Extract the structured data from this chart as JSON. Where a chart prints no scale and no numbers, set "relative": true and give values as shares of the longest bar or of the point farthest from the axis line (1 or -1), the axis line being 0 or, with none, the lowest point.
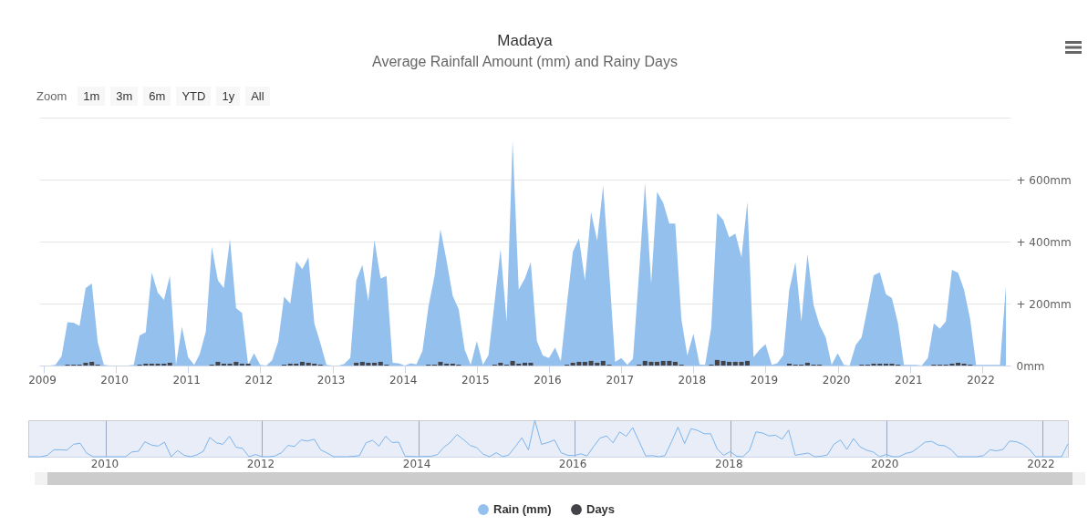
{
  "chart_data": [
    {
      "type": "area",
      "title": "Madaya",
      "subtitle": "Average Rainfall Amount (mm) and Rainy Days",
      "annotations": [
        "Zoom",
        "1m",
        "3m",
        "6m",
        "YTD",
        "1y",
        "All"
      ],
      "x": [
        "2009-01",
        "2009-02",
        "2009-03",
        "2009-04",
        "2009-05",
        "2009-06",
        "2009-07",
        "2009-08",
        "2009-09",
        "2009-10",
        "2009-11",
        "2009-12",
        "2010-01",
        "2010-02",
        "2010-03",
        "2010-04",
        "2010-05",
        "2010-06",
        "2010-07",
        "2010-08",
        "2010-09",
        "2010-10",
        "2010-11",
        "2010-12",
        "2011-01",
        "2011-02",
        "2011-03",
        "2011-04",
        "2011-05",
        "2011-06",
        "2011-07",
        "2011-08",
        "2011-09",
        "2011-10",
        "2011-11",
        "2011-12",
        "2012-01",
        "2012-02",
        "2012-03",
        "2012-04",
        "2012-05",
        "2012-06",
        "2012-07",
        "2012-08",
        "2012-09",
        "2012-10",
        "2012-11",
        "2012-12",
        "2013-01",
        "2013-02",
        "2013-03",
        "2013-04",
        "2013-05",
        "2013-06",
        "2013-07",
        "2013-08",
        "2013-09",
        "2013-10",
        "2013-11",
        "2013-12",
        "2014-01",
        "2014-02",
        "2014-03",
        "2014-04",
        "2014-05",
        "2014-06",
        "2014-07",
        "2014-08",
        "2014-09",
        "2014-10",
        "2014-11",
        "2014-12",
        "2015-01",
        "2015-02",
        "2015-03",
        "2015-04",
        "2015-05",
        "2015-06",
        "2015-07",
        "2015-08",
        "2015-09",
        "2015-10",
        "2015-11",
        "2015-12",
        "2016-01",
        "2016-02",
        "2016-03",
        "2016-04",
        "2016-05",
        "2016-06",
        "2016-07",
        "2016-08",
        "2016-09",
        "2016-10",
        "2016-11",
        "2016-12",
        "2017-01",
        "2017-02",
        "2017-03",
        "2017-04",
        "2017-05",
        "2017-06",
        "2017-07",
        "2017-08",
        "2017-09",
        "2017-10",
        "2017-11",
        "2017-12",
        "2018-01",
        "2018-02",
        "2018-03",
        "2018-04",
        "2018-05",
        "2018-06",
        "2018-07",
        "2018-08",
        "2018-09",
        "2018-10",
        "2018-11",
        "2018-12",
        "2019-01",
        "2019-02",
        "2019-03",
        "2019-04",
        "2019-05",
        "2019-06",
        "2019-07",
        "2019-08",
        "2019-09",
        "2019-10",
        "2019-11",
        "2019-12",
        "2020-01",
        "2020-02",
        "2020-03",
        "2020-04",
        "2020-05",
        "2020-06",
        "2020-07",
        "2020-08",
        "2020-09",
        "2020-10",
        "2020-11",
        "2020-12",
        "2021-01",
        "2021-02",
        "2021-03",
        "2021-04",
        "2021-05",
        "2021-06",
        "2021-07",
        "2021-08",
        "2021-09",
        "2021-10",
        "2021-11",
        "2021-12",
        "2022-01",
        "2022-02",
        "2022-03",
        "2022-04",
        "2022-05"
      ],
      "series": [
        {
          "name": "Rain (mm)",
          "color": "#94c0ee",
          "values": [
            0,
            0,
            2,
            30,
            140,
            138,
            128,
            250,
            265,
            75,
            2,
            0,
            0,
            0,
            0,
            2,
            97,
            107,
            300,
            235,
            212,
            290,
            2,
            125,
            27,
            2,
            37,
            110,
            383,
            275,
            250,
            408,
            185,
            170,
            2,
            40,
            2,
            0,
            17,
            77,
            222,
            200,
            337,
            311,
            349,
            136,
            71,
            2,
            0,
            0,
            5,
            25,
            275,
            325,
            207,
            405,
            281,
            289,
            9,
            7,
            0,
            7,
            4,
            47,
            190,
            289,
            440,
            339,
            225,
            182,
            51,
            2,
            79,
            2,
            34,
            205,
            375,
            141,
            725,
            245,
            281,
            334,
            79,
            32,
            24,
            58,
            14,
            200,
            368,
            410,
            274,
            495,
            403,
            581,
            300,
            12,
            24,
            2,
            22,
            300,
            590,
            264,
            560,
            525,
            458,
            458,
            150,
            32,
            103,
            4,
            2,
            121,
            492,
            469,
            413,
            426,
            350,
            529,
            27,
            51,
            69,
            2,
            7,
            34,
            245,
            334,
            143,
            360,
            195,
            131,
            91,
            2,
            40,
            2,
            0,
            66,
            91,
            190,
            291,
            301,
            230,
            218,
            136,
            2,
            2,
            2,
            0,
            24,
            136,
            119,
            143,
            309,
            299,
            245,
            150,
            2,
            2,
            2,
            2,
            2,
            257
          ]
        },
        {
          "name": "Days",
          "type": "bar",
          "color": "#434348",
          "values": [
            null,
            null,
            null,
            null,
            3,
            3,
            3,
            9,
            12,
            3,
            null,
            null,
            null,
            null,
            null,
            null,
            3,
            6,
            6,
            6,
            6,
            9,
            null,
            null,
            null,
            null,
            null,
            null,
            3,
            12,
            6,
            6,
            12,
            6,
            6,
            null,
            null,
            null,
            null,
            null,
            3,
            6,
            6,
            12,
            9,
            6,
            3,
            null,
            null,
            null,
            null,
            null,
            9,
            12,
            9,
            9,
            12,
            3,
            null,
            null,
            null,
            null,
            null,
            null,
            3,
            3,
            12,
            6,
            6,
            3,
            null,
            null,
            null,
            null,
            null,
            3,
            9,
            3,
            15,
            6,
            9,
            9,
            null,
            null,
            null,
            null,
            null,
            3,
            9,
            12,
            12,
            15,
            9,
            15,
            3,
            null,
            null,
            null,
            null,
            3,
            15,
            12,
            12,
            15,
            15,
            12,
            3,
            null,
            null,
            null,
            null,
            3,
            18,
            15,
            12,
            12,
            12,
            15,
            null,
            null,
            null,
            null,
            null,
            null,
            6,
            3,
            3,
            9,
            3,
            3,
            null,
            null,
            null,
            null,
            null,
            null,
            3,
            3,
            6,
            6,
            6,
            6,
            3,
            null,
            null,
            null,
            null,
            null,
            3,
            3,
            3,
            6,
            9,
            6,
            3,
            null,
            null,
            null,
            null,
            null,
            null
          ]
        }
      ],
      "xlim": [
        "2009-01",
        "2022-05"
      ],
      "xticks": [
        "2009",
        "2010",
        "2011",
        "2012",
        "2013",
        "2014",
        "2015",
        "2016",
        "2017",
        "2018",
        "2019",
        "2020",
        "2021",
        "2022"
      ],
      "ylim": [
        0,
        800
      ],
      "yticks": [
        {
          "value": 0,
          "label": "0mm"
        },
        {
          "value": 200,
          "label": "+ 200mm"
        },
        {
          "value": 400,
          "label": "+ 400mm"
        },
        {
          "value": 600,
          "label": "+ 600mm"
        },
        {
          "value": 800,
          "label": null
        }
      ],
      "grid": "y",
      "legend": "bottom",
      "marker": "none"
    },
    {
      "type": "line",
      "relative": true,
      "x": [
        "2009-01",
        "2009-02",
        "2009-03",
        "2009-04",
        "2009-05",
        "2009-06",
        "2009-07",
        "2009-08",
        "2009-09",
        "2009-10",
        "2009-11",
        "2009-12",
        "2010-01",
        "2010-02",
        "2010-03",
        "2010-04",
        "2010-05",
        "2010-06",
        "2010-07",
        "2010-08",
        "2010-09",
        "2010-10",
        "2010-11",
        "2010-12",
        "2011-01",
        "2011-02",
        "2011-03",
        "2011-04",
        "2011-05",
        "2011-06",
        "2011-07",
        "2011-08",
        "2011-09",
        "2011-10",
        "2011-11",
        "2011-12",
        "2012-01",
        "2012-02",
        "2012-03",
        "2012-04",
        "2012-05",
        "2012-06",
        "2012-07",
        "2012-08",
        "2012-09",
        "2012-10",
        "2012-11",
        "2012-12",
        "2013-01",
        "2013-02",
        "2013-03",
        "2013-04",
        "2013-05",
        "2013-06",
        "2013-07",
        "2013-08",
        "2013-09",
        "2013-10",
        "2013-11",
        "2013-12",
        "2014-01",
        "2014-02",
        "2014-03",
        "2014-04",
        "2014-05",
        "2014-06",
        "2014-07",
        "2014-08",
        "2014-09",
        "2014-10",
        "2014-11",
        "2014-12",
        "2015-01",
        "2015-02",
        "2015-03",
        "2015-04",
        "2015-05",
        "2015-06",
        "2015-07",
        "2015-08",
        "2015-09",
        "2015-10",
        "2015-11",
        "2015-12",
        "2016-01",
        "2016-02",
        "2016-03",
        "2016-04",
        "2016-05",
        "2016-06",
        "2016-07",
        "2016-08",
        "2016-09",
        "2016-10",
        "2016-11",
        "2016-12",
        "2017-01",
        "2017-02",
        "2017-03",
        "2017-04",
        "2017-05",
        "2017-06",
        "2017-07",
        "2017-08",
        "2017-09",
        "2017-10",
        "2017-11",
        "2017-12",
        "2018-01",
        "2018-02",
        "2018-03",
        "2018-04",
        "2018-05",
        "2018-06",
        "2018-07",
        "2018-08",
        "2018-09",
        "2018-10",
        "2018-11",
        "2018-12",
        "2019-01",
        "2019-02",
        "2019-03",
        "2019-04",
        "2019-05",
        "2019-06",
        "2019-07",
        "2019-08",
        "2019-09",
        "2019-10",
        "2019-11",
        "2019-12",
        "2020-01",
        "2020-02",
        "2020-03",
        "2020-04",
        "2020-05",
        "2020-06",
        "2020-07",
        "2020-08",
        "2020-09",
        "2020-10",
        "2020-11",
        "2020-12",
        "2021-01",
        "2021-02",
        "2021-03",
        "2021-04",
        "2021-05",
        "2021-06",
        "2021-07",
        "2021-08",
        "2021-09",
        "2021-10",
        "2021-11",
        "2021-12",
        "2022-01",
        "2022-02",
        "2022-03",
        "2022-04",
        "2022-05"
      ],
      "series": [
        {
          "color": "#7cb5ec",
          "values": [
            0,
            0,
            0,
            0.04,
            0.19,
            0.19,
            0.18,
            0.34,
            0.37,
            0.1,
            0,
            0,
            0,
            0,
            0,
            0,
            0.13,
            0.15,
            0.41,
            0.32,
            0.29,
            0.4,
            0,
            0.17,
            0.04,
            0,
            0.05,
            0.15,
            0.53,
            0.38,
            0.34,
            0.56,
            0.26,
            0.23,
            0,
            0.06,
            0,
            0,
            0.02,
            0.11,
            0.31,
            0.28,
            0.46,
            0.43,
            0.48,
            0.19,
            0.1,
            0,
            0,
            0,
            0.01,
            0.03,
            0.38,
            0.45,
            0.29,
            0.56,
            0.39,
            0.4,
            0.01,
            0.01,
            0,
            0.01,
            0.01,
            0.06,
            0.26,
            0.4,
            0.61,
            0.47,
            0.31,
            0.25,
            0.07,
            0,
            0.11,
            0,
            0.05,
            0.28,
            0.52,
            0.19,
            1,
            0.34,
            0.39,
            0.46,
            0.11,
            0.04,
            0.03,
            0.08,
            0.02,
            0.28,
            0.51,
            0.57,
            0.38,
            0.68,
            0.56,
            0.8,
            0.41,
            0.02,
            0.03,
            0,
            0.03,
            0.41,
            0.81,
            0.36,
            0.77,
            0.72,
            0.63,
            0.63,
            0.21,
            0.04,
            0.14,
            0.01,
            0,
            0.17,
            0.68,
            0.65,
            0.57,
            0.59,
            0.48,
            0.73,
            0.04,
            0.07,
            0.1,
            0,
            0.01,
            0.05,
            0.34,
            0.46,
            0.2,
            0.5,
            0.27,
            0.18,
            0.13,
            0,
            0.06,
            0,
            0,
            0.09,
            0.13,
            0.26,
            0.4,
            0.42,
            0.32,
            0.3,
            0.19,
            0,
            0,
            0,
            0,
            0.03,
            0.19,
            0.16,
            0.2,
            0.43,
            0.41,
            0.34,
            0.21,
            0,
            0,
            0,
            0,
            0,
            0.35
          ]
        }
      ],
      "xlim": [
        "2009-01",
        "2022-05"
      ],
      "xticks": [
        "2010",
        "2012",
        "2014",
        "2016",
        "2018",
        "2020",
        "2022"
      ],
      "grid": "x",
      "tick_labels": "x",
      "legend": false
    }
  ]
}
